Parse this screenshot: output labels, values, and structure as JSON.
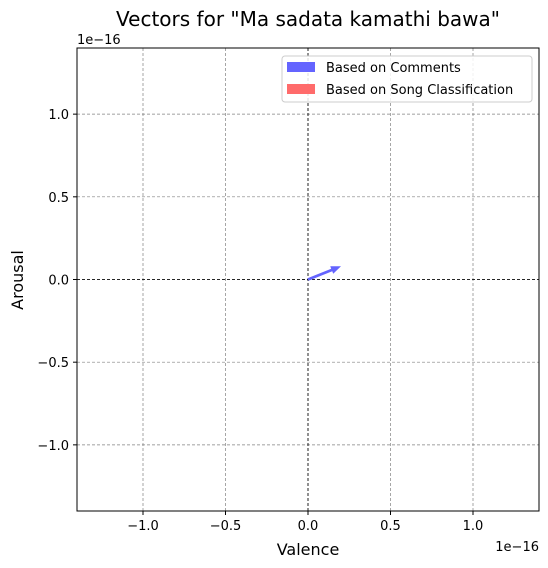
{
  "chart_data": {
    "type": "vector",
    "title": "Vectors for \"Ma sadata kamathi bawa\"",
    "xlabel": "Valence",
    "ylabel": "Arousal",
    "x_scale_label": "1e−16",
    "y_scale_label": "1e−16",
    "xlim": [
      -1.4,
      1.4
    ],
    "ylim": [
      -1.4,
      1.4
    ],
    "xticks": [
      -1.0,
      -0.5,
      0.0,
      0.5,
      1.0
    ],
    "yticks": [
      -1.0,
      -0.5,
      0.0,
      0.5,
      1.0
    ],
    "xtick_labels": [
      "−1.0",
      "−0.5",
      "0.0",
      "0.5",
      "1.0"
    ],
    "ytick_labels": [
      "−1.0",
      "−0.5",
      "0.0",
      "0.5",
      "1.0"
    ],
    "grid": true,
    "legend_position": "top-right",
    "series": [
      {
        "name": "Based on Comments",
        "color": "#6464ff",
        "vectors": [
          {
            "x0": 0,
            "y0": 0,
            "dx": 0.2,
            "dy": 0.08
          }
        ]
      },
      {
        "name": "Based on Song Classification",
        "color": "#ff6b6b",
        "vectors": [
          {
            "x0": 0,
            "y0": 0,
            "dx": 0.0,
            "dy": 0.0
          }
        ]
      }
    ]
  }
}
